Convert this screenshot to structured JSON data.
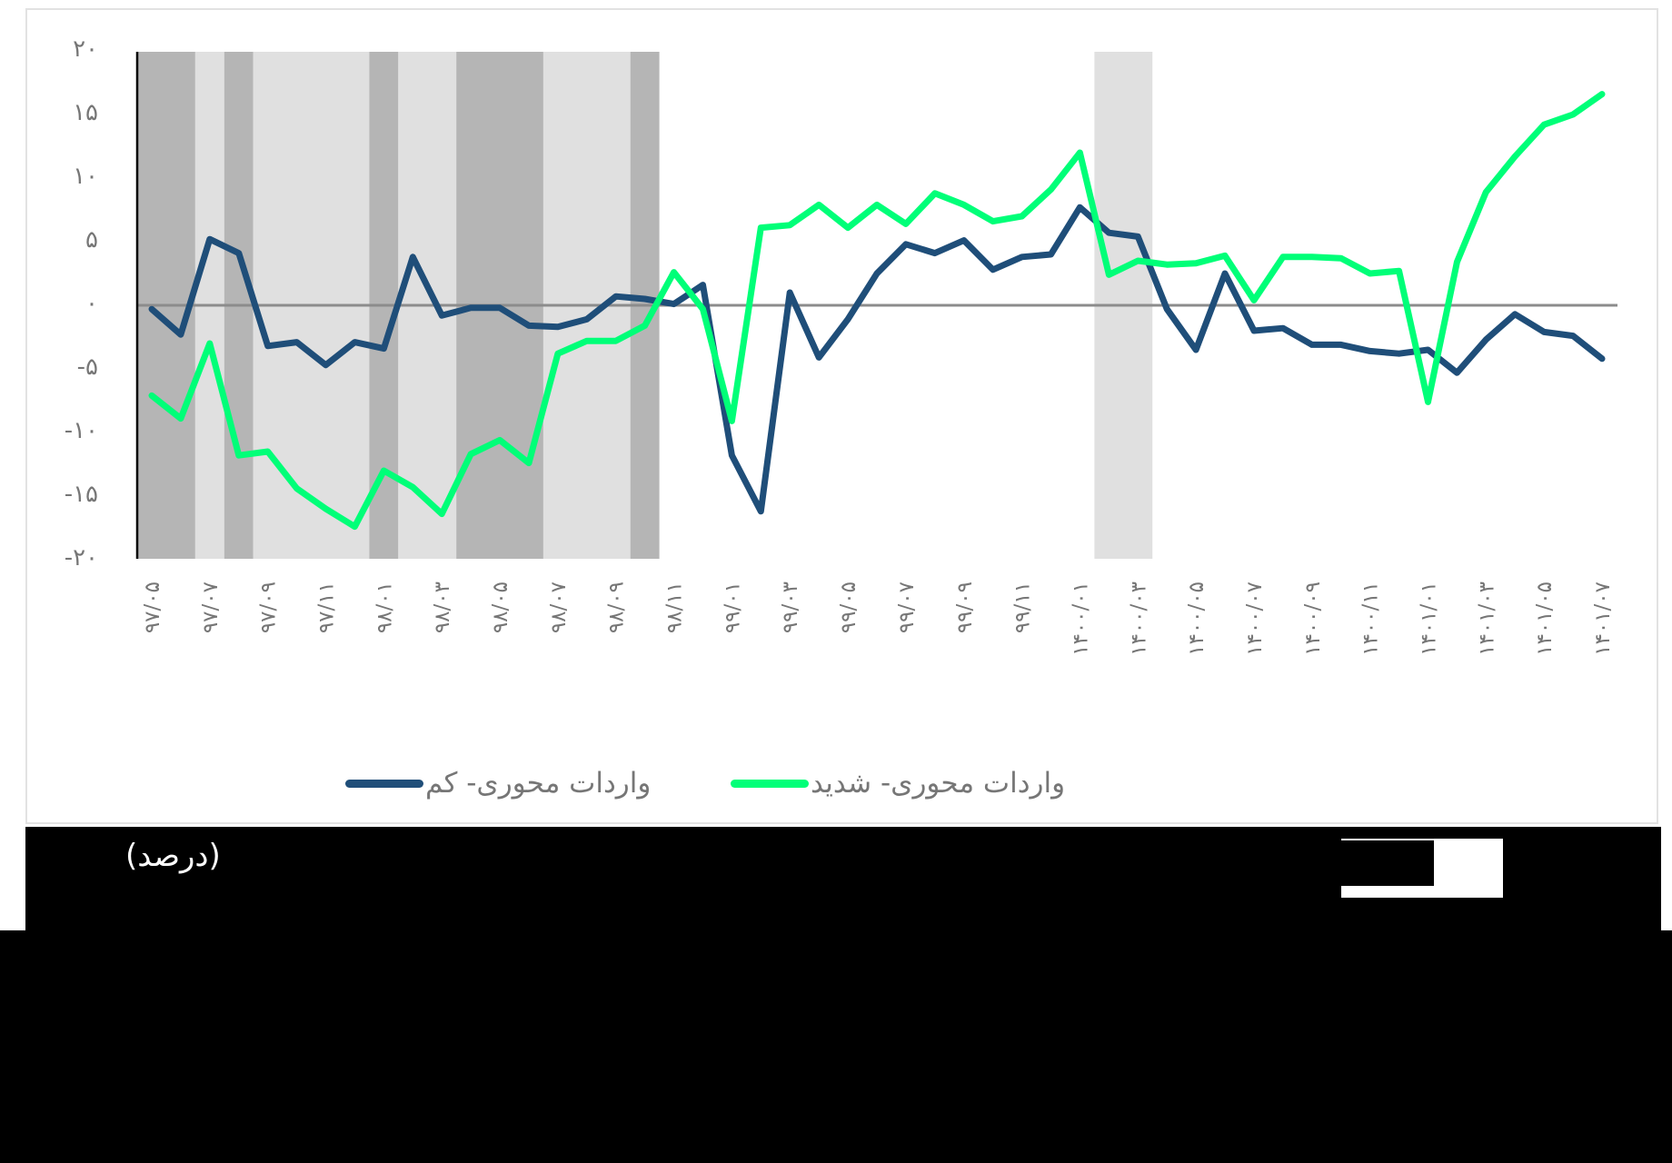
{
  "chart_data": {
    "type": "line",
    "title": "",
    "unit_label": "(درصد)",
    "xlabel": "",
    "ylabel": "",
    "ylim": [
      -20,
      20
    ],
    "yticks": [
      20,
      15,
      10,
      5,
      0,
      -5,
      -10,
      -15,
      -20
    ],
    "ytick_labels": [
      "۲۰",
      "۱۵",
      "۱۰",
      "۵",
      "۰",
      "-۵",
      "-۱۰",
      "-۱۵",
      "-۲۰"
    ],
    "grid": false,
    "legend_position": "bottom",
    "x_tick_labels": [
      "۹۷/۰۵",
      "۹۷/۰۷",
      "۹۷/۰۹",
      "۹۷/۱۱",
      "۹۸/۰۱",
      "۹۸/۰۳",
      "۹۸/۰۵",
      "۹۸/۰۷",
      "۹۸/۰۹",
      "۹۸/۱۱",
      "۹۹/۰۱",
      "۹۹/۰۳",
      "۹۹/۰۵",
      "۹۹/۰۷",
      "۹۹/۰۹",
      "۹۹/۱۱",
      "۱۴۰۰/۰۱",
      "۱۴۰۰/۰۳",
      "۱۴۰۰/۰۵",
      "۱۴۰۰/۰۷",
      "۱۴۰۰/۰۹",
      "۱۴۰۰/۱۱",
      "۱۴۰۱/۰۱",
      "۱۴۰۱/۰۳",
      "۱۴۰۱/۰۵",
      "۱۴۰۱/۰۷"
    ],
    "x": [
      "97/05",
      "97/06",
      "97/07",
      "97/08",
      "97/09",
      "97/10",
      "97/11",
      "97/12",
      "98/01",
      "98/02",
      "98/03",
      "98/04",
      "98/05",
      "98/06",
      "98/07",
      "98/08",
      "98/09",
      "98/10",
      "98/11",
      "98/12",
      "99/01",
      "99/02",
      "99/03",
      "99/04",
      "99/05",
      "99/06",
      "99/07",
      "99/08",
      "99/09",
      "99/10",
      "99/11",
      "99/12",
      "1400/01",
      "1400/02",
      "1400/03",
      "1400/04",
      "1400/05",
      "1400/06",
      "1400/07",
      "1400/08",
      "1400/09",
      "1400/10",
      "1400/11",
      "1400/12",
      "1401/01",
      "1401/02",
      "1401/03",
      "1401/04",
      "1401/05",
      "1401/06",
      "1401/07"
    ],
    "series": [
      {
        "name": "واردات محوری- کم",
        "color": "#1f4e79",
        "values": [
          -0.3,
          -2.3,
          5.2,
          4.1,
          -3.2,
          -2.9,
          -4.7,
          -2.9,
          -3.4,
          3.8,
          -0.8,
          -0.2,
          -0.2,
          -1.6,
          -1.7,
          -1.1,
          0.7,
          0.5,
          0.1,
          1.6,
          -11.8,
          -16.2,
          1.0,
          -4.1,
          -1.1,
          2.5,
          4.8,
          4.1,
          5.1,
          2.8,
          3.8,
          4.0,
          7.7,
          5.7,
          5.4,
          -0.3,
          -3.5,
          2.5,
          -2.0,
          -1.8,
          -3.1,
          -3.1,
          -3.6,
          -3.8,
          -3.5,
          -5.3,
          -2.7,
          -0.7,
          -2.1,
          -2.4,
          -4.2
        ]
      },
      {
        "name": "واردات محوری- شدید",
        "color": "#00ff78",
        "values": [
          -7.1,
          -8.9,
          -3.0,
          -11.8,
          -11.5,
          -14.4,
          -16.0,
          -17.4,
          -13.0,
          -14.3,
          -16.4,
          -11.7,
          -10.6,
          -12.4,
          -3.8,
          -2.8,
          -2.8,
          -1.6,
          2.6,
          -0.3,
          -9.1,
          6.1,
          6.3,
          7.9,
          6.1,
          7.9,
          6.4,
          8.8,
          7.9,
          6.6,
          7.0,
          9.1,
          12.0,
          2.4,
          3.5,
          3.2,
          3.3,
          3.9,
          0.4,
          3.8,
          3.8,
          3.7,
          2.5,
          2.7,
          -7.6,
          3.4,
          8.9,
          11.7,
          14.2,
          15.0,
          16.6
        ]
      }
    ],
    "shaded_bands": [
      {
        "from_index": -0.5,
        "to_index": 1.5,
        "shade": "dark",
        "color": "#b5b5b5"
      },
      {
        "from_index": 1.5,
        "to_index": 2.5,
        "shade": "light",
        "color": "#e0e0e0"
      },
      {
        "from_index": 2.5,
        "to_index": 3.5,
        "shade": "dark",
        "color": "#b5b5b5"
      },
      {
        "from_index": 3.5,
        "to_index": 7.5,
        "shade": "light",
        "color": "#e0e0e0"
      },
      {
        "from_index": 7.5,
        "to_index": 8.5,
        "shade": "dark",
        "color": "#b5b5b5"
      },
      {
        "from_index": 8.5,
        "to_index": 10.5,
        "shade": "light",
        "color": "#e0e0e0"
      },
      {
        "from_index": 10.5,
        "to_index": 13.5,
        "shade": "dark",
        "color": "#b5b5b5"
      },
      {
        "from_index": 13.5,
        "to_index": 16.5,
        "shade": "light",
        "color": "#e0e0e0"
      },
      {
        "from_index": 16.5,
        "to_index": 17.5,
        "shade": "dark",
        "color": "#b5b5b5"
      },
      {
        "from_index": 32.5,
        "to_index": 34.5,
        "shade": "light",
        "color": "#e0e0e0"
      }
    ]
  },
  "legend": {
    "items": [
      {
        "label": "واردات محوری- شدید",
        "color": "#00ff78"
      },
      {
        "label": "واردات محوری- کم",
        "color": "#1f4e79"
      }
    ]
  },
  "footer": {
    "unit_label": "(درصد)"
  }
}
